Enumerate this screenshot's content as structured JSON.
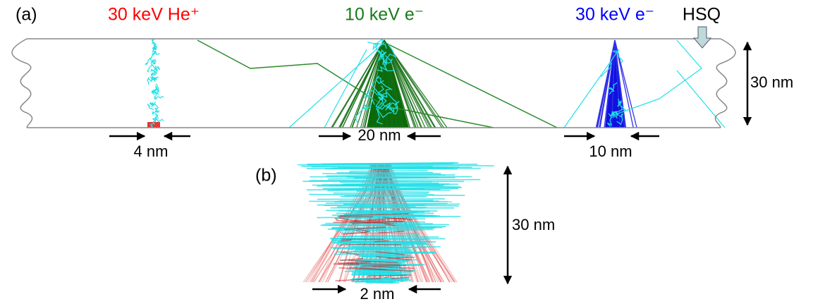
{
  "panel_a": {
    "label": "(a)",
    "beams": [
      {
        "label": "30 keV He⁺",
        "color": "#ff0000"
      },
      {
        "label": "10 keV e⁻",
        "color": "#1a7a1a"
      },
      {
        "label": "30 keV e⁻",
        "color": "#0000ff"
      }
    ],
    "layer_label": "HSQ",
    "thickness": "30 nm",
    "widths": [
      "4 nm",
      "20 nm",
      "10 nm"
    ]
  },
  "panel_b": {
    "label": "(b)",
    "height": "30 nm",
    "width": "2 nm"
  }
}
